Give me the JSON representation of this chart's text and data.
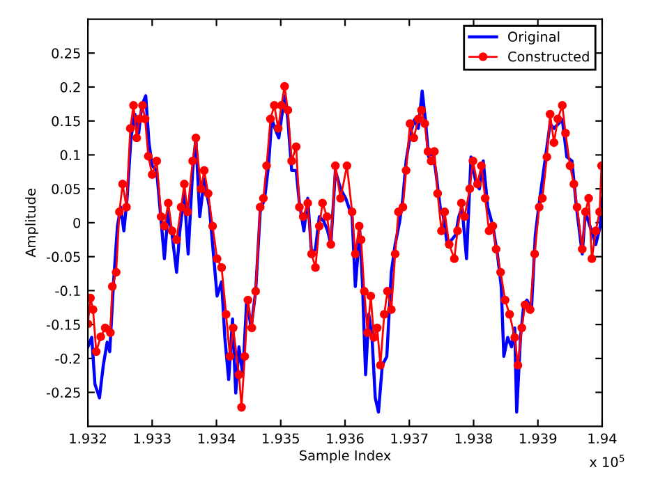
{
  "chart_data": {
    "type": "line",
    "xlabel": "Sample Index",
    "ylabel": "Amplitude",
    "annotations": [
      "x 10$^{5}$"
    ],
    "xlim": [
      1.932,
      1.94
    ],
    "xticks": [
      1.932,
      1.933,
      1.934,
      1.935,
      1.936,
      1.937,
      1.938,
      1.939,
      1.94
    ],
    "ylim": [
      -0.3,
      0.3
    ],
    "yticks": [
      -0.25,
      -0.2,
      -0.15,
      -0.1,
      -0.05,
      0,
      0.05,
      0.1,
      0.15,
      0.2,
      0.25
    ],
    "grid": false,
    "legend": "top right",
    "line_style": "solid",
    "series": [
      {
        "name": "Original",
        "color": "#0000ff",
        "marker": "none",
        "x": [
          1.932,
          1.93206,
          1.93211,
          1.93218,
          1.93224,
          1.9323,
          1.93234,
          1.9324,
          1.93246,
          1.93251,
          1.93256,
          1.93261,
          1.93267,
          1.93273,
          1.93279,
          1.93284,
          1.9329,
          1.93295,
          1.933,
          1.93307,
          1.93314,
          1.93319,
          1.93325,
          1.93331,
          1.93338,
          1.93343,
          1.9335,
          1.93356,
          1.93363,
          1.93368,
          1.93374,
          1.93381,
          1.93389,
          1.93394,
          1.93401,
          1.93408,
          1.93413,
          1.93419,
          1.93425,
          1.9343,
          1.93435,
          1.93441,
          1.93447,
          1.93454,
          1.93461,
          1.93468,
          1.93475,
          1.93481,
          1.93486,
          1.93491,
          1.93497,
          1.93502,
          1.93506,
          1.93511,
          1.93517,
          1.93524,
          1.93529,
          1.93536,
          1.93542,
          1.93548,
          1.93554,
          1.9356,
          1.93567,
          1.93573,
          1.93578,
          1.93585,
          1.93593,
          1.93601,
          1.93611,
          1.93616,
          1.93623,
          1.93627,
          1.93632,
          1.93637,
          1.93642,
          1.93647,
          1.93652,
          1.93658,
          1.93665,
          1.93672,
          1.93678,
          1.93685,
          1.9369,
          1.93695,
          1.93702,
          1.93708,
          1.93714,
          1.9372,
          1.93725,
          1.9373,
          1.93736,
          1.93741,
          1.93748,
          1.93753,
          1.93759,
          1.93766,
          1.93772,
          1.93777,
          1.93782,
          1.93789,
          1.93796,
          1.93804,
          1.93809,
          1.93815,
          1.93822,
          1.9383,
          1.93837,
          1.93843,
          1.93847,
          1.93853,
          1.93859,
          1.93864,
          1.93867,
          1.93873,
          1.93878,
          1.93883,
          1.9389,
          1.93896,
          1.93903,
          1.93911,
          1.93919,
          1.93925,
          1.93932,
          1.93938,
          1.93945,
          1.93953,
          1.9396,
          1.93969,
          1.93974,
          1.93981,
          1.9399,
          1.93997,
          1.93999
        ],
        "values": [
          -0.183,
          -0.169,
          -0.238,
          -0.258,
          -0.21,
          -0.176,
          -0.19,
          -0.087,
          -0.005,
          0.023,
          -0.012,
          0.036,
          0.125,
          0.16,
          0.132,
          0.173,
          0.187,
          0.118,
          0.084,
          0.077,
          0.002,
          -0.053,
          0.016,
          -0.018,
          -0.073,
          -0.012,
          0.043,
          -0.046,
          0.077,
          0.125,
          0.009,
          0.064,
          0.023,
          -0.032,
          -0.108,
          -0.087,
          -0.169,
          -0.231,
          -0.142,
          -0.251,
          -0.183,
          -0.224,
          -0.114,
          -0.155,
          -0.101,
          0.016,
          0.036,
          0.084,
          0.153,
          0.139,
          0.125,
          0.16,
          0.187,
          0.153,
          0.077,
          0.077,
          0.029,
          -0.012,
          0.036,
          -0.046,
          -0.039,
          0.009,
          0.002,
          -0.012,
          -0.032,
          0.077,
          0.05,
          0.036,
          0.009,
          -0.094,
          -0.012,
          -0.087,
          -0.224,
          -0.135,
          -0.169,
          -0.258,
          -0.279,
          -0.21,
          -0.197,
          -0.073,
          -0.032,
          0.002,
          0.036,
          0.091,
          0.132,
          0.152,
          0.139,
          0.194,
          0.152,
          0.097,
          0.105,
          0.077,
          0.023,
          0.009,
          -0.032,
          -0.025,
          -0.018,
          0.009,
          0.023,
          -0.053,
          0.097,
          0.057,
          0.05,
          0.091,
          0.023,
          -0.005,
          -0.046,
          -0.094,
          -0.197,
          -0.169,
          -0.183,
          -0.155,
          -0.279,
          -0.169,
          -0.121,
          -0.114,
          -0.128,
          -0.018,
          0.036,
          0.091,
          0.146,
          0.139,
          0.146,
          0.152,
          0.097,
          0.091,
          0.023,
          -0.046,
          0.016,
          -0.005,
          -0.032,
          -0.005,
          0.036
        ]
      },
      {
        "name": "Constructed",
        "color": "#ff0000",
        "marker": "circle",
        "x": [
          1.932,
          1.93204,
          1.93208,
          1.93213,
          1.9322,
          1.93227,
          1.93235,
          1.93238,
          1.93244,
          1.93249,
          1.93254,
          1.9326,
          1.93266,
          1.93271,
          1.93276,
          1.9328,
          1.93285,
          1.93289,
          1.93294,
          1.933,
          1.93307,
          1.93314,
          1.93319,
          1.93325,
          1.93331,
          1.93338,
          1.93345,
          1.9335,
          1.93355,
          1.93363,
          1.93368,
          1.93376,
          1.93381,
          1.93387,
          1.93394,
          1.93401,
          1.93408,
          1.93415,
          1.93421,
          1.93426,
          1.93435,
          1.93439,
          1.93444,
          1.93449,
          1.93455,
          1.93461,
          1.93468,
          1.93473,
          1.93478,
          1.93484,
          1.9349,
          1.93496,
          1.93501,
          1.93506,
          1.93511,
          1.93517,
          1.93524,
          1.93529,
          1.93535,
          1.93542,
          1.93548,
          1.93554,
          1.9356,
          1.93565,
          1.93572,
          1.93578,
          1.93585,
          1.93593,
          1.93603,
          1.93611,
          1.93616,
          1.93622,
          1.93625,
          1.9363,
          1.93635,
          1.9364,
          1.93645,
          1.9365,
          1.93655,
          1.93661,
          1.93666,
          1.93672,
          1.93678,
          1.93683,
          1.9369,
          1.93695,
          1.93701,
          1.93707,
          1.93714,
          1.93719,
          1.93724,
          1.93729,
          1.93734,
          1.93739,
          1.93744,
          1.9375,
          1.93755,
          1.93762,
          1.9377,
          1.93775,
          1.93781,
          1.93786,
          1.93794,
          1.93799,
          1.93806,
          1.93812,
          1.93818,
          1.93824,
          1.9383,
          1.93835,
          1.93842,
          1.93849,
          1.93856,
          1.93864,
          1.93869,
          1.93875,
          1.9388,
          1.93888,
          1.93895,
          1.93902,
          1.93907,
          1.93914,
          1.93919,
          1.93925,
          1.93931,
          1.93938,
          1.93943,
          1.9395,
          1.93956,
          1.93961,
          1.93969,
          1.93974,
          1.93979,
          1.93984,
          1.9399,
          1.93996,
          1.93999
        ],
        "values": [
          -0.149,
          -0.111,
          -0.128,
          -0.19,
          -0.168,
          -0.155,
          -0.162,
          -0.094,
          -0.073,
          0.016,
          0.057,
          0.023,
          0.139,
          0.173,
          0.125,
          0.153,
          0.173,
          0.153,
          0.098,
          0.071,
          0.091,
          0.009,
          -0.005,
          0.029,
          -0.012,
          -0.025,
          0.023,
          0.057,
          0.016,
          0.091,
          0.125,
          0.05,
          0.077,
          0.043,
          -0.005,
          -0.053,
          -0.066,
          -0.135,
          -0.197,
          -0.155,
          -0.224,
          -0.272,
          -0.197,
          -0.114,
          -0.155,
          -0.101,
          0.023,
          0.036,
          0.084,
          0.153,
          0.173,
          0.139,
          0.173,
          0.201,
          0.166,
          0.091,
          0.112,
          0.023,
          0.009,
          0.029,
          -0.046,
          -0.066,
          -0.005,
          0.029,
          0.009,
          -0.032,
          0.084,
          0.036,
          0.084,
          0.016,
          -0.046,
          -0.005,
          -0.025,
          -0.101,
          -0.162,
          -0.108,
          -0.169,
          -0.155,
          -0.21,
          -0.135,
          -0.101,
          -0.128,
          -0.046,
          0.016,
          0.023,
          0.077,
          0.146,
          0.125,
          0.153,
          0.166,
          0.146,
          0.105,
          0.091,
          0.105,
          0.043,
          -0.012,
          0.016,
          -0.032,
          -0.053,
          -0.012,
          0.029,
          0.009,
          0.05,
          0.091,
          0.057,
          0.084,
          0.036,
          -0.012,
          -0.005,
          -0.039,
          -0.073,
          -0.114,
          -0.135,
          -0.169,
          -0.21,
          -0.155,
          -0.121,
          -0.128,
          -0.046,
          0.023,
          0.036,
          0.097,
          0.16,
          0.118,
          0.153,
          0.173,
          0.132,
          0.084,
          0.057,
          0.023,
          -0.039,
          0.016,
          0.036,
          -0.053,
          -0.012,
          0.016,
          0.084
        ]
      }
    ]
  }
}
